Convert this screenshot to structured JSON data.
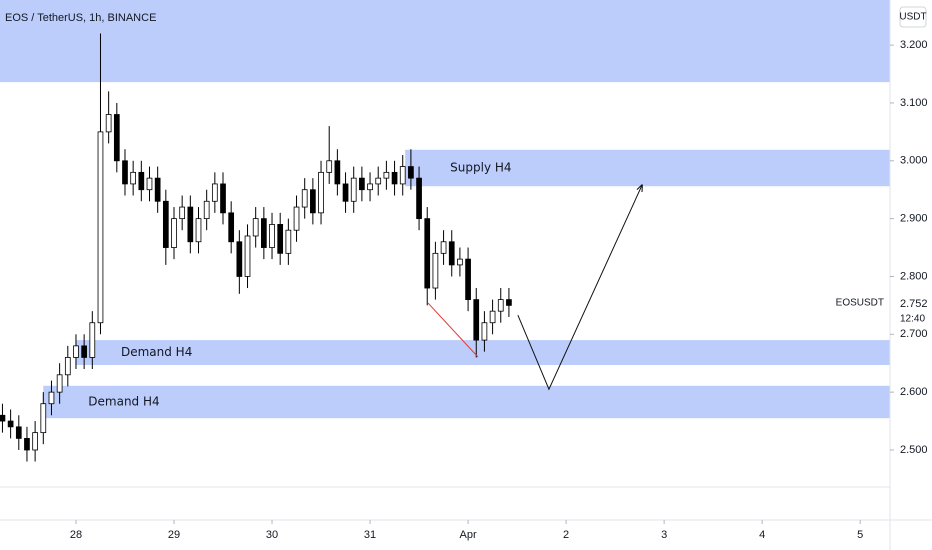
{
  "chart_data": {
    "type": "candlestick",
    "title": "EOS / TetherUS, 1h, BINANCE",
    "currency": "USDT",
    "symbol": "EOSUSDT",
    "last_price": {
      "value": 2.752,
      "label": "2.752"
    },
    "countdown": "12:40",
    "up_color": "#ffffff",
    "down_color": "#000000",
    "border_color": "#000000",
    "xlim": [
      -18.6,
      199.3
    ],
    "xticks": [
      {
        "value": 0,
        "label": "28"
      },
      {
        "value": 24,
        "label": "29"
      },
      {
        "value": 48,
        "label": "30"
      },
      {
        "value": 72,
        "label": "31"
      },
      {
        "value": 96,
        "label": "Apr"
      },
      {
        "value": 120,
        "label": "2"
      },
      {
        "value": 144,
        "label": "3"
      },
      {
        "value": 168,
        "label": "4"
      },
      {
        "value": 192,
        "label": "5"
      }
    ],
    "ylim": [
      2.436,
      3.278
    ],
    "yticks": [
      {
        "value": 3.2,
        "label": "3.200"
      },
      {
        "value": 3.1,
        "label": "3.100"
      },
      {
        "value": 3.0,
        "label": "3.000"
      },
      {
        "value": 2.9,
        "label": "2.900"
      },
      {
        "value": 2.8,
        "label": "2.800"
      },
      {
        "value": 2.7,
        "label": "2.700"
      },
      {
        "value": 2.6,
        "label": "2.600"
      },
      {
        "value": 2.5,
        "label": "2.500"
      }
    ],
    "x": [
      -18,
      -16,
      -14,
      -12,
      -10,
      -8,
      -6,
      -4,
      -2,
      0,
      2,
      4,
      6,
      8,
      10,
      12,
      14,
      16,
      18,
      20,
      22,
      24,
      26,
      28,
      30,
      32,
      34,
      36,
      38,
      40,
      42,
      44,
      46,
      48,
      50,
      52,
      54,
      56,
      58,
      60,
      62,
      64,
      66,
      68,
      70,
      72,
      74,
      76,
      78,
      80,
      82,
      84,
      86,
      88,
      90,
      92,
      94,
      96,
      98,
      100,
      102,
      104,
      106
    ],
    "open": [
      2.56,
      2.55,
      2.54,
      2.52,
      2.5,
      2.53,
      2.58,
      2.6,
      2.63,
      2.66,
      2.68,
      2.66,
      2.72,
      3.05,
      3.08,
      3.0,
      2.96,
      2.98,
      2.95,
      2.97,
      2.93,
      2.85,
      2.9,
      2.92,
      2.86,
      2.9,
      2.93,
      2.96,
      2.91,
      2.86,
      2.8,
      2.87,
      2.9,
      2.85,
      2.89,
      2.84,
      2.88,
      2.92,
      2.95,
      2.91,
      2.98,
      3.0,
      2.96,
      2.93,
      2.97,
      2.95,
      2.96,
      2.97,
      2.98,
      2.96,
      2.99,
      2.97,
      2.9,
      2.78,
      2.84,
      2.86,
      2.82,
      2.83,
      2.76,
      2.69,
      2.72,
      2.74,
      2.76
    ],
    "high": [
      2.58,
      2.57,
      2.56,
      2.54,
      2.55,
      2.6,
      2.62,
      2.65,
      2.68,
      2.7,
      2.7,
      2.74,
      3.22,
      3.12,
      3.1,
      3.02,
      3.0,
      3.0,
      2.99,
      2.99,
      2.95,
      2.92,
      2.94,
      2.94,
      2.92,
      2.95,
      2.98,
      2.98,
      2.93,
      2.88,
      2.89,
      2.92,
      2.92,
      2.91,
      2.91,
      2.9,
      2.94,
      2.97,
      2.97,
      3.0,
      3.06,
      3.02,
      2.98,
      2.99,
      2.99,
      2.98,
      2.99,
      3.0,
      3.0,
      3.01,
      3.02,
      2.99,
      2.92,
      2.86,
      2.88,
      2.88,
      2.85,
      2.85,
      2.78,
      2.74,
      2.76,
      2.78,
      2.78
    ],
    "low": [
      2.53,
      2.52,
      2.5,
      2.48,
      2.48,
      2.51,
      2.56,
      2.58,
      2.61,
      2.64,
      2.64,
      2.64,
      2.7,
      3.03,
      2.98,
      2.94,
      2.94,
      2.93,
      2.93,
      2.91,
      2.82,
      2.83,
      2.88,
      2.84,
      2.84,
      2.88,
      2.91,
      2.89,
      2.84,
      2.77,
      2.78,
      2.85,
      2.83,
      2.83,
      2.82,
      2.82,
      2.86,
      2.9,
      2.89,
      2.89,
      2.96,
      2.94,
      2.91,
      2.91,
      2.93,
      2.93,
      2.94,
      2.95,
      2.94,
      2.94,
      2.95,
      2.88,
      2.75,
      2.76,
      2.82,
      2.8,
      2.8,
      2.74,
      2.66,
      2.67,
      2.7,
      2.72,
      2.73
    ],
    "close": [
      2.55,
      2.54,
      2.52,
      2.5,
      2.53,
      2.58,
      2.6,
      2.63,
      2.66,
      2.68,
      2.66,
      2.72,
      3.05,
      3.08,
      3.0,
      2.96,
      2.98,
      2.95,
      2.97,
      2.93,
      2.85,
      2.9,
      2.92,
      2.86,
      2.9,
      2.93,
      2.96,
      2.91,
      2.86,
      2.8,
      2.87,
      2.9,
      2.85,
      2.89,
      2.84,
      2.88,
      2.92,
      2.95,
      2.91,
      2.98,
      3.0,
      2.96,
      2.93,
      2.97,
      2.95,
      2.96,
      2.97,
      2.98,
      2.96,
      2.99,
      2.97,
      2.9,
      2.78,
      2.84,
      2.86,
      2.82,
      2.83,
      2.76,
      2.69,
      2.72,
      2.74,
      2.76,
      2.75
    ],
    "zone_color": "#bccdfc",
    "zones": [
      {
        "top": 3.278,
        "bottom": 3.136,
        "x_start": -18.6
      },
      {
        "label": "Supply H4",
        "top": 3.019,
        "bottom": 2.956,
        "x_start": 80.6
      },
      {
        "label": "Demand H4",
        "top": 2.69,
        "bottom": 2.647,
        "x_start": 0
      },
      {
        "label": "Demand H4",
        "top": 2.611,
        "bottom": 2.555,
        "x_start": -8
      }
    ],
    "red_line": {
      "color": "#e53935",
      "x": [
        86.2,
        98.4
      ],
      "y": [
        2.754,
        2.661
      ]
    },
    "arrow": {
      "color": "#111111",
      "x": [
        108.2,
        115.8,
        138.6
      ],
      "y": [
        2.733,
        2.605,
        2.958
      ]
    }
  }
}
